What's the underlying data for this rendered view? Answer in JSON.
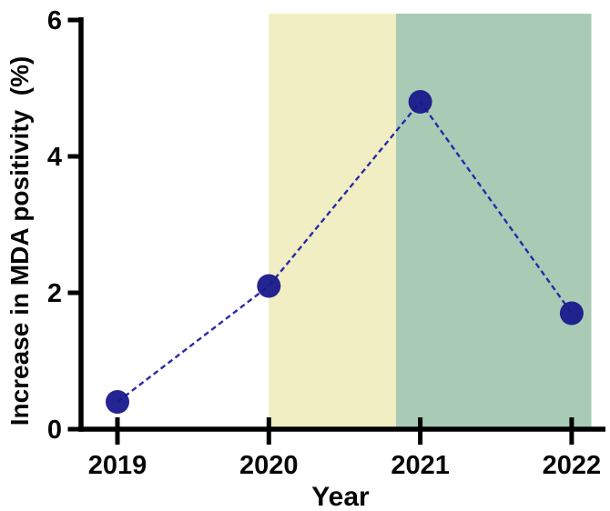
{
  "figure": {
    "background_color": "#ffffff"
  },
  "chart_data": {
    "type": "line",
    "title": "",
    "xlabel": "Year",
    "ylabel": "Increase in MDA positivity  (%)",
    "x": [
      2019,
      2020,
      2021,
      2022
    ],
    "xticklabels": [
      "2019",
      "2020",
      "2021",
      "2022"
    ],
    "values": [
      0.4,
      2.1,
      4.8,
      1.7
    ],
    "ylim": [
      0,
      6
    ],
    "yticks": [
      0,
      2,
      4,
      6
    ],
    "grid": false,
    "legend": "none",
    "line": {
      "style": "dashed",
      "color": "#2a2aa8",
      "width": 2.4
    },
    "marker": {
      "shape": "circle",
      "color": "#18188c",
      "radius": 13,
      "opacity": 0.95
    },
    "axis_color": "#000000",
    "bands": [
      {
        "label": "yellow-highlight-band",
        "x_from": 2020.0,
        "x_to": 2020.84,
        "color": "#f0eec2"
      },
      {
        "label": "green-highlight-band",
        "x_from": 2020.84,
        "x_to": 2022.13,
        "color": "#a9cbb6"
      }
    ]
  }
}
